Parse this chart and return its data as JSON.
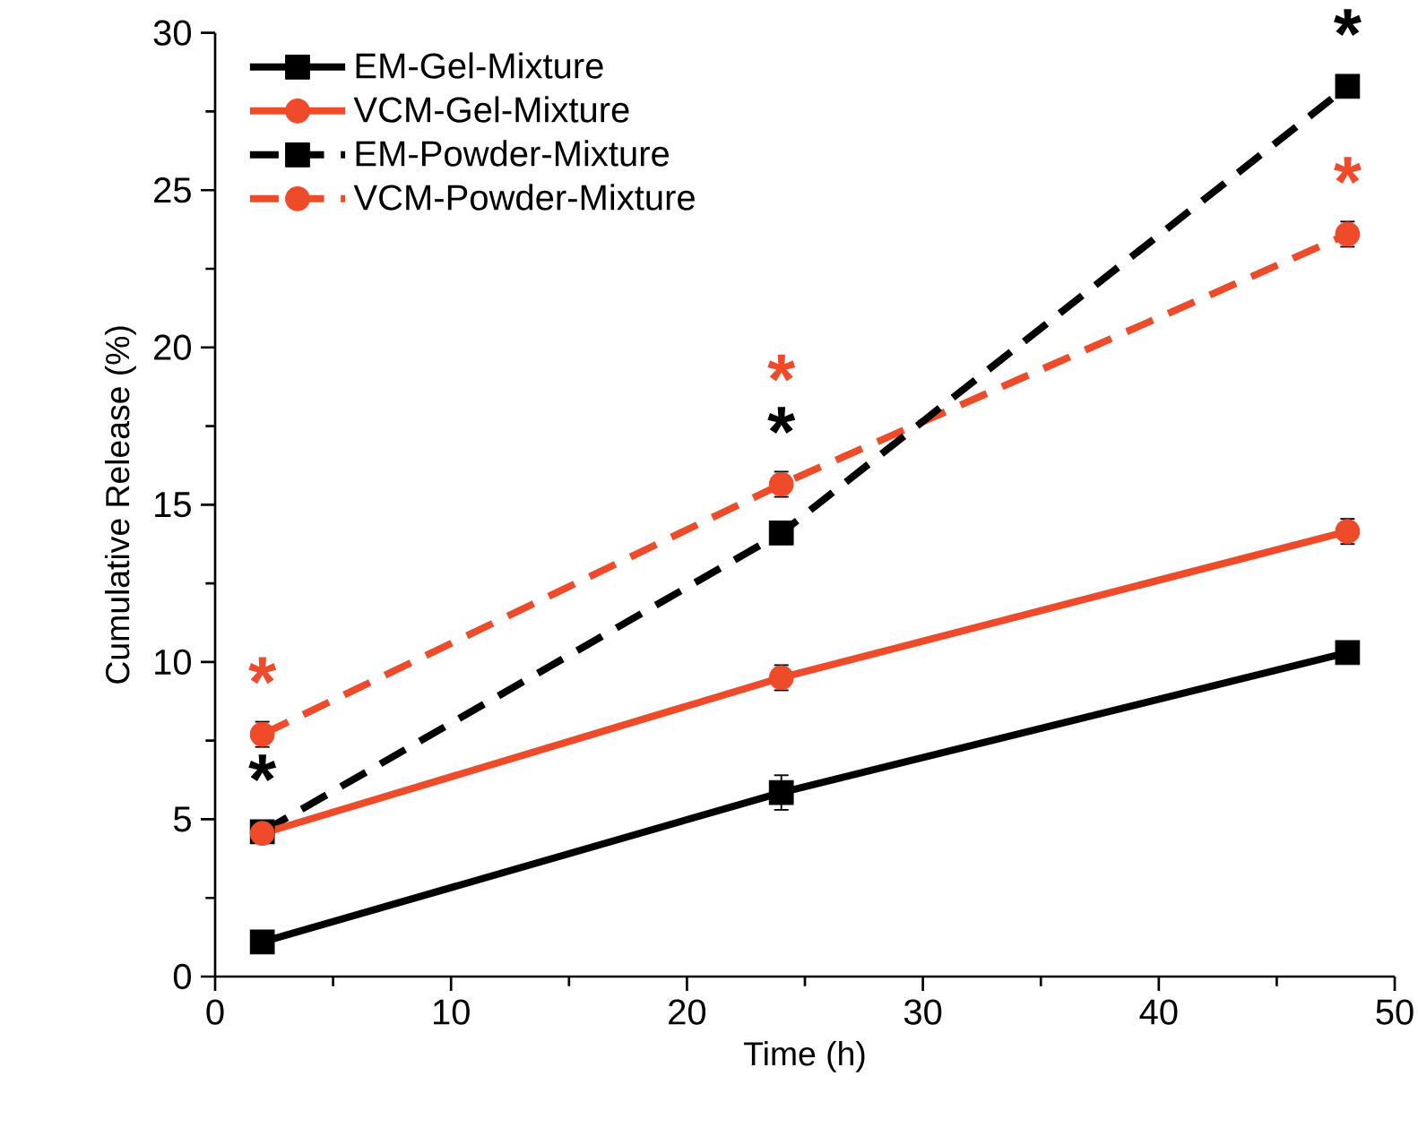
{
  "chart_data": {
    "type": "line",
    "xlabel": "Time (h)",
    "ylabel": "Cumulative Release (%)",
    "x": [
      2,
      24,
      48
    ],
    "series": [
      {
        "name": "EM-Gel-Mixture",
        "color": "#000000",
        "marker": "square",
        "line_style": "solid",
        "values": [
          1.1,
          5.85,
          10.3
        ],
        "errors": [
          null,
          0.55,
          null
        ]
      },
      {
        "name": "VCM-Gel-Mixture",
        "color": "#ee4b2b",
        "marker": "circle",
        "line_style": "solid",
        "values": [
          4.55,
          9.5,
          14.15
        ],
        "errors": [
          null,
          0.4,
          0.4
        ]
      },
      {
        "name": "EM-Powder-Mixture",
        "color": "#000000",
        "marker": "square",
        "line_style": "dashed",
        "values": [
          4.6,
          14.1,
          28.3
        ],
        "errors": [
          null,
          null,
          null
        ]
      },
      {
        "name": "VCM-Powder-Mixture",
        "color": "#ee4b2b",
        "marker": "circle",
        "line_style": "dashed",
        "values": [
          7.7,
          15.65,
          23.6
        ],
        "errors": [
          0.4,
          0.4,
          0.4
        ]
      }
    ],
    "annotations": [
      {
        "text": "*",
        "x": 2,
        "y": 7.7
      },
      {
        "text": "*",
        "x": 2,
        "y": 4.6
      },
      {
        "text": "*",
        "x": 24,
        "y": 15.65
      },
      {
        "text": "*",
        "x": 24,
        "y": 14.1
      },
      {
        "text": "*",
        "x": 48,
        "y": 28.3
      },
      {
        "text": "*",
        "x": 48,
        "y": 23.6
      }
    ],
    "xlim": [
      0,
      50
    ],
    "ylim": [
      0,
      30
    ],
    "xticks": [
      0,
      10,
      20,
      30,
      40,
      50
    ],
    "yticks": [
      0,
      5,
      10,
      15,
      20,
      25,
      30
    ],
    "grid": false,
    "legend": "top left"
  }
}
